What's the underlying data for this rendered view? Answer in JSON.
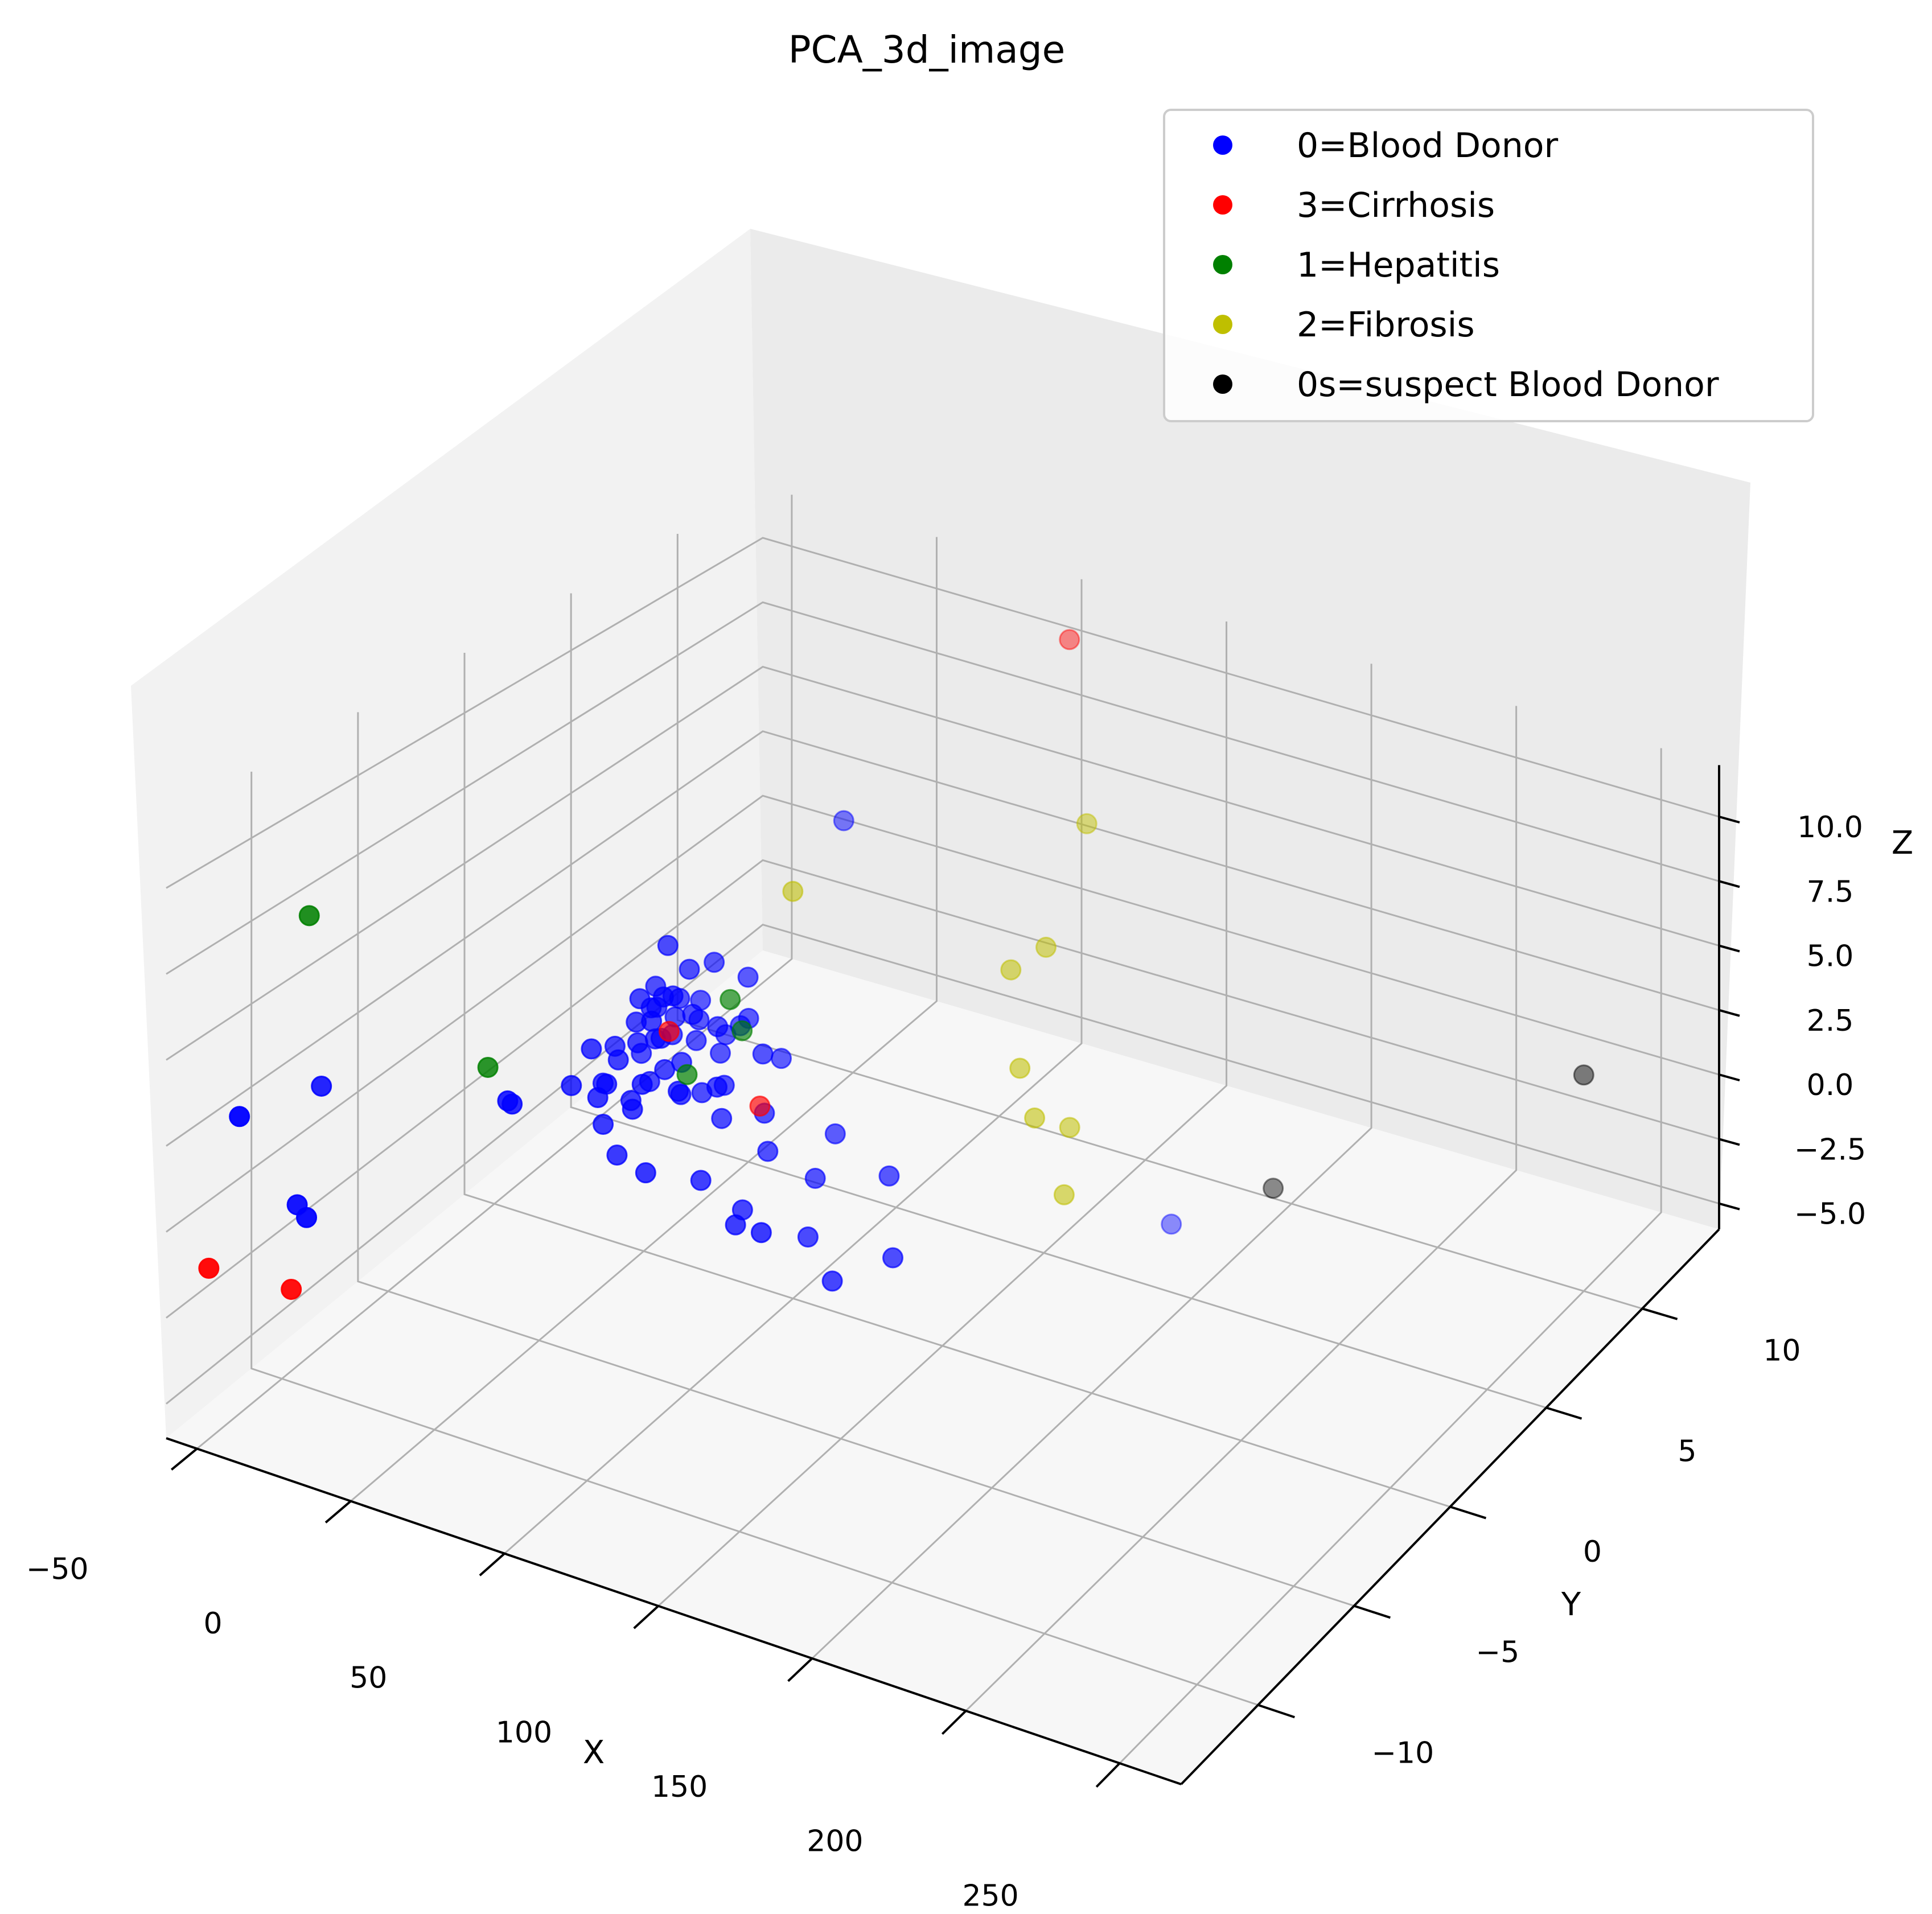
{
  "chart_data": {
    "type": "scatter",
    "title": "PCA_3d_image",
    "xlabel": "X",
    "ylabel": "Y",
    "zlabel": "Z",
    "xlim": [
      -60,
      270
    ],
    "ylim": [
      -14,
      14
    ],
    "zlim": [
      -6,
      12
    ],
    "xticks": [
      "−50",
      "0",
      "50",
      "100",
      "150",
      "200",
      "250"
    ],
    "yticks": [
      "−10",
      "−5",
      "0",
      "5",
      "10"
    ],
    "zticks": [
      "−5.0",
      "−2.5",
      "0.0",
      "2.5",
      "5.0",
      "7.5",
      "10.0"
    ],
    "grid": true,
    "legend_position": "top-right",
    "series": [
      {
        "name": "0=Blood Donor",
        "color": "#0000ff",
        "points": [
          [
            -3,
            1,
            2.2
          ],
          [
            -1,
            0.5,
            1.8
          ],
          [
            1,
            -0.5,
            1.9
          ],
          [
            3,
            0.2,
            2.1
          ],
          [
            5,
            -1,
            1.6
          ],
          [
            -2,
            2,
            1.3
          ],
          [
            0,
            1.5,
            1.0
          ],
          [
            2,
            -1.5,
            1.2
          ],
          [
            4,
            0.8,
            0.9
          ],
          [
            6,
            -0.3,
            1.4
          ],
          [
            -4,
            -0.8,
            1.1
          ],
          [
            8,
            1.2,
            1.5
          ],
          [
            10,
            -0.6,
            1.7
          ],
          [
            7,
            0.4,
            2.5
          ],
          [
            3,
            -2.2,
            0.8
          ],
          [
            -1,
            -1.8,
            0.5
          ],
          [
            1,
            2.5,
            0.4
          ],
          [
            5,
            1.8,
            0.2
          ],
          [
            9,
            -1.9,
            0.3
          ],
          [
            12,
            0.1,
            0.6
          ],
          [
            14,
            -1.0,
            1.0
          ],
          [
            -5,
            0.6,
            0.1
          ],
          [
            11,
            2.1,
            -0.2
          ],
          [
            6,
            -2.8,
            -0.1
          ],
          [
            2,
            0.0,
            -0.3
          ],
          [
            15,
            1.4,
            1.2
          ],
          [
            0,
            -2.5,
            2.0
          ],
          [
            4,
            2.8,
            2.3
          ],
          [
            8,
            -0.2,
            2.8
          ],
          [
            13,
            -2.4,
            0.4
          ],
          [
            -2,
            3.0,
            0.7
          ],
          [
            10,
            3.2,
            0.1
          ],
          [
            16,
            0.5,
            -0.5
          ],
          [
            7,
            -3.2,
            1.0
          ],
          [
            12,
            -3.0,
            -0.8
          ],
          [
            3,
            3.5,
            -0.6
          ],
          [
            18,
            -0.8,
            0.2
          ],
          [
            20,
            1.0,
            -0.4
          ],
          [
            17,
            2.6,
            0.9
          ],
          [
            1,
            -3.6,
            1.4
          ],
          [
            9,
            0.9,
            3.2
          ],
          [
            5,
            -0.9,
            3.0
          ],
          [
            14,
            3.0,
            2.0
          ],
          [
            22,
            -1.5,
            0.8
          ],
          [
            11,
            -1.2,
            2.6
          ],
          [
            24,
            0.3,
            -1.0
          ],
          [
            19,
            -2.8,
            1.6
          ],
          [
            26,
            2.0,
            0.3
          ],
          [
            21,
            3.6,
            -0.9
          ],
          [
            28,
            -0.5,
            0.6
          ],
          [
            30,
            1.5,
            -1.3
          ],
          [
            25,
            -3.5,
            -0.7
          ],
          [
            6,
            0.3,
            4.2
          ],
          [
            33,
            -2.0,
            -1.5
          ],
          [
            36,
            0.8,
            -2.0
          ],
          [
            40,
            -1.0,
            -2.8
          ],
          [
            45,
            1.8,
            -3.2
          ],
          [
            48,
            -2.5,
            -2.2
          ],
          [
            42,
            3.2,
            -2.6
          ],
          [
            55,
            0.0,
            -3.8
          ],
          [
            60,
            -3.0,
            -1.8
          ],
          [
            65,
            2.5,
            -2.9
          ],
          [
            70,
            -1.0,
            -4.2
          ],
          [
            80,
            0.5,
            -4.0
          ],
          [
            -2,
            -6,
            1.9
          ],
          [
            0,
            -6.5,
            2.3
          ],
          [
            -58,
            -7,
            1.2
          ],
          [
            -35,
            -11,
            -0.2
          ],
          [
            -45,
            -10,
            -0.6
          ],
          [
            -50,
            -12,
            2.8
          ],
          [
            4,
            9,
            4.0
          ],
          [
            95,
            12,
            -10.0
          ]
        ]
      },
      {
        "name": "3=Cirrhosis",
        "color": "#ff0000",
        "points": [
          [
            5,
            0.5,
            1.2
          ],
          [
            -60,
            -12,
            -2.0
          ],
          [
            -40,
            -11,
            -2.5
          ],
          [
            25,
            2,
            -1.5
          ],
          [
            60,
            12,
            11.0
          ]
        ]
      },
      {
        "name": "1=Hepatitis",
        "color": "#008000",
        "points": [
          [
            -55,
            -8,
            7.0
          ],
          [
            -10,
            -6,
            2.8
          ],
          [
            15,
            2,
            1.8
          ],
          [
            18,
            -0.5,
            0.7
          ],
          [
            12,
            3,
            0.1
          ]
        ]
      },
      {
        "name": "2=Fibrosis",
        "color": "#bfbf00",
        "points": [
          [
            8,
            6,
            3.2
          ],
          [
            80,
            10,
            5.8
          ],
          [
            80,
            8,
            2.4
          ],
          [
            75,
            7,
            2.0
          ],
          [
            85,
            6,
            -0.6
          ],
          [
            90,
            6,
            -2.2
          ],
          [
            95,
            7,
            -3.0
          ],
          [
            100,
            6,
            -4.6
          ]
        ]
      },
      {
        "name": "0s=suspect Blood Donor",
        "color": "#000000",
        "points": [
          [
            250,
            10,
            2.0
          ],
          [
            130,
            12,
            -7.5
          ]
        ]
      }
    ]
  }
}
